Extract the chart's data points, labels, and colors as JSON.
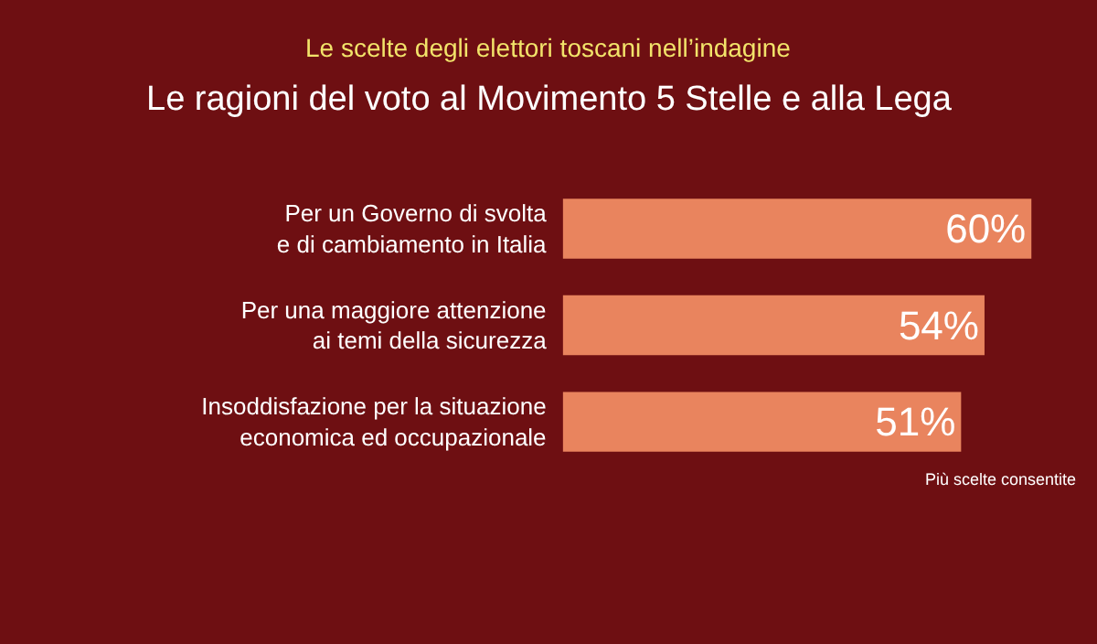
{
  "chart_data": {
    "type": "bar",
    "orientation": "horizontal",
    "title": "Le scelte degli elettori toscani nell’indagine",
    "subtitle": "Le ragioni del voto al Movimento 5 Stelle e alla Lega",
    "categories": [
      "Per un Governo di svolta\ne di cambiamento in Italia",
      "Per una maggiore attenzione\nai temi della sicurezza",
      "Insoddisfazione per la situazione\neconomica ed occupazionale"
    ],
    "values": [
      60,
      54,
      51
    ],
    "color": "#e9845e",
    "value_labels": [
      "60%",
      "54%",
      "51%"
    ],
    "annotations": [
      "Più scelte consentite"
    ],
    "legend": false
  }
}
